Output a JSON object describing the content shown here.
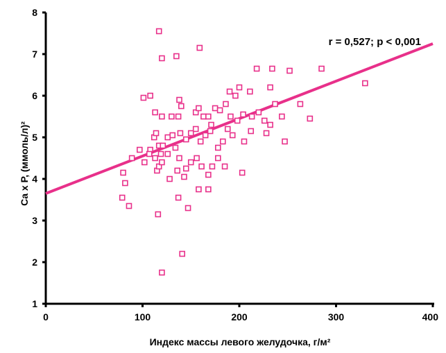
{
  "chart_data": {
    "type": "scatter",
    "title": "",
    "xlabel": "Индекс массы левого желудочка, г/м²",
    "ylabel": "Ca x P, (ммоль/л)²",
    "xlim": [
      0,
      400
    ],
    "ylim": [
      1,
      8
    ],
    "x_ticks": [
      "0",
      "100",
      "200",
      "300",
      "400"
    ],
    "y_ticks": [
      "1",
      "2",
      "3",
      "4",
      "5",
      "6",
      "7",
      "8"
    ],
    "grid": false,
    "legend": "none",
    "annotation": "r = 0,527; p < 0,001",
    "marker_color": "#e8308a",
    "line_color": "#e8308a",
    "trendline": {
      "x": [
        0,
        400
      ],
      "y": [
        3.65,
        7.25
      ]
    },
    "points": [
      [
        117,
        7.55
      ],
      [
        120,
        6.9
      ],
      [
        135,
        6.95
      ],
      [
        159,
        7.15
      ],
      [
        108,
        6.0
      ],
      [
        101,
        5.95
      ],
      [
        138,
        5.9
      ],
      [
        190,
        6.1
      ],
      [
        200,
        6.2
      ],
      [
        218,
        6.65
      ],
      [
        234,
        6.65
      ],
      [
        252,
        6.6
      ],
      [
        285,
        6.65
      ],
      [
        330,
        6.3
      ],
      [
        232,
        6.2
      ],
      [
        211,
        6.1
      ],
      [
        196,
        6.0
      ],
      [
        113,
        5.6
      ],
      [
        120,
        5.5
      ],
      [
        130,
        5.5
      ],
      [
        137,
        5.5
      ],
      [
        140,
        5.75
      ],
      [
        155,
        5.6
      ],
      [
        158,
        5.7
      ],
      [
        163,
        5.5
      ],
      [
        168,
        5.5
      ],
      [
        171,
        5.3
      ],
      [
        175,
        5.7
      ],
      [
        180,
        5.65
      ],
      [
        186,
        5.8
      ],
      [
        191,
        5.5
      ],
      [
        198,
        5.4
      ],
      [
        204,
        5.55
      ],
      [
        213,
        5.5
      ],
      [
        220,
        5.6
      ],
      [
        226,
        5.4
      ],
      [
        232,
        5.3
      ],
      [
        237,
        5.8
      ],
      [
        244,
        5.5
      ],
      [
        263,
        5.8
      ],
      [
        273,
        5.45
      ],
      [
        108,
        4.7
      ],
      [
        112,
        5.0
      ],
      [
        114,
        5.1
      ],
      [
        117,
        4.8
      ],
      [
        119,
        4.6
      ],
      [
        121,
        4.8
      ],
      [
        126,
        5.0
      ],
      [
        131,
        5.05
      ],
      [
        134,
        4.75
      ],
      [
        139,
        5.1
      ],
      [
        145,
        4.95
      ],
      [
        150,
        5.1
      ],
      [
        155,
        5.2
      ],
      [
        160,
        4.9
      ],
      [
        165,
        5.05
      ],
      [
        170,
        5.15
      ],
      [
        178,
        4.75
      ],
      [
        183,
        4.9
      ],
      [
        188,
        5.2
      ],
      [
        193,
        5.05
      ],
      [
        205,
        4.9
      ],
      [
        212,
        5.15
      ],
      [
        228,
        5.1
      ],
      [
        247,
        4.9
      ],
      [
        80,
        4.15
      ],
      [
        82,
        3.9
      ],
      [
        89,
        4.5
      ],
      [
        97,
        4.7
      ],
      [
        102,
        4.4
      ],
      [
        107,
        4.6
      ],
      [
        113,
        4.5
      ],
      [
        115,
        4.2
      ],
      [
        117,
        4.3
      ],
      [
        120,
        4.4
      ],
      [
        126,
        4.6
      ],
      [
        128,
        4.0
      ],
      [
        136,
        4.2
      ],
      [
        138,
        4.5
      ],
      [
        143,
        4.05
      ],
      [
        145,
        4.25
      ],
      [
        150,
        4.4
      ],
      [
        156,
        4.5
      ],
      [
        161,
        4.3
      ],
      [
        168,
        4.1
      ],
      [
        172,
        4.3
      ],
      [
        178,
        4.5
      ],
      [
        185,
        4.3
      ],
      [
        203,
        4.15
      ],
      [
        79,
        3.55
      ],
      [
        86,
        3.35
      ],
      [
        116,
        3.15
      ],
      [
        137,
        3.55
      ],
      [
        147,
        3.3
      ],
      [
        158,
        3.75
      ],
      [
        168,
        3.75
      ],
      [
        141,
        2.2
      ],
      [
        120,
        1.75
      ]
    ]
  }
}
